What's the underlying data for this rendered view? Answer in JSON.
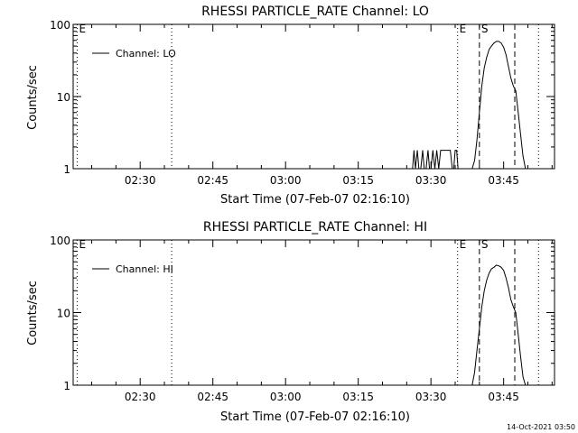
{
  "footer_timestamp": "14-Oct-2021 03:50",
  "chart_data": [
    {
      "type": "line",
      "title": "RHESSI PARTICLE_RATE Channel: LO",
      "xlabel": "Start Time (07-Feb-07 02:16:10)",
      "ylabel": "Counts/sec",
      "y_scale": "log",
      "ylim": [
        1,
        100
      ],
      "xlim_minutes": [
        16.17,
        115.5
      ],
      "x_tick_labels": [
        "02:30",
        "02:45",
        "03:00",
        "03:15",
        "03:30",
        "03:45"
      ],
      "x_tick_minutes": [
        30,
        45,
        60,
        75,
        90,
        105
      ],
      "y_tick_labels": [
        "1",
        "10",
        "100"
      ],
      "y_tick_values": [
        1,
        10,
        100
      ],
      "legend": {
        "position": "top-left",
        "entries": [
          "Channel: LO"
        ]
      },
      "markers": [
        {
          "label": "E",
          "x_minutes": 17.0,
          "style": "dotted"
        },
        {
          "label": "",
          "x_minutes": 36.5,
          "style": "dotted"
        },
        {
          "label": "E",
          "x_minutes": 95.5,
          "style": "dotted"
        },
        {
          "label": "S",
          "x_minutes": 100.0,
          "style": "dashed"
        },
        {
          "label": "",
          "x_minutes": 107.3,
          "style": "dashed"
        },
        {
          "label": "",
          "x_minutes": 112.2,
          "style": "dotted"
        }
      ],
      "series": [
        {
          "name": "Channel: LO",
          "x_minutes": [
            86.2,
            86.5,
            86.8,
            87.2,
            87.5,
            87.9,
            88.3,
            88.6,
            89.0,
            89.4,
            89.7,
            90.0,
            90.4,
            90.8,
            91.2,
            91.6,
            92.0,
            92.4,
            92.8,
            93.2,
            93.6,
            94.0,
            94.4,
            94.7,
            95.0,
            95.3,
            95.6,
            96.0,
            96.3,
            96.6,
            97.0,
            97.5,
            98.0,
            98.5,
            99.0,
            99.5,
            100.0,
            100.5,
            101.0,
            101.5,
            102.0,
            102.5,
            103.0,
            103.5,
            104.0,
            104.5,
            105.0,
            105.5,
            106.0,
            106.5,
            107.0,
            107.5,
            108.0,
            108.5,
            109.0,
            109.5
          ],
          "values": [
            1.0,
            1.8,
            1.0,
            1.8,
            1.0,
            1.0,
            1.8,
            1.0,
            1.0,
            1.8,
            1.0,
            1.0,
            1.8,
            1.0,
            1.8,
            1.0,
            1.8,
            1.8,
            1.8,
            1.8,
            1.8,
            1.8,
            1.0,
            1.0,
            1.8,
            1.8,
            1.0,
            1.0,
            1.0,
            1.0,
            1.0,
            1.0,
            1.0,
            1.0,
            1.3,
            2.5,
            6.0,
            14,
            25,
            35,
            45,
            50,
            55,
            58,
            58,
            55,
            48,
            38,
            26,
            18,
            14,
            12,
            6,
            3,
            1.5,
            1.0
          ]
        }
      ]
    },
    {
      "type": "line",
      "title": "RHESSI PARTICLE_RATE Channel: HI",
      "xlabel": "Start Time (07-Feb-07 02:16:10)",
      "ylabel": "Counts/sec",
      "y_scale": "log",
      "ylim": [
        1,
        100
      ],
      "xlim_minutes": [
        16.17,
        115.5
      ],
      "x_tick_labels": [
        "02:30",
        "02:45",
        "03:00",
        "03:15",
        "03:30",
        "03:45"
      ],
      "x_tick_minutes": [
        30,
        45,
        60,
        75,
        90,
        105
      ],
      "y_tick_labels": [
        "1",
        "10",
        "100"
      ],
      "y_tick_values": [
        1,
        10,
        100
      ],
      "legend": {
        "position": "top-left",
        "entries": [
          "Channel: HI"
        ]
      },
      "markers": [
        {
          "label": "E",
          "x_minutes": 17.0,
          "style": "dotted"
        },
        {
          "label": "",
          "x_minutes": 36.5,
          "style": "dotted"
        },
        {
          "label": "E",
          "x_minutes": 95.5,
          "style": "dotted"
        },
        {
          "label": "S",
          "x_minutes": 100.0,
          "style": "dashed"
        },
        {
          "label": "",
          "x_minutes": 107.3,
          "style": "dashed"
        },
        {
          "label": "",
          "x_minutes": 112.2,
          "style": "dotted"
        }
      ],
      "series": [
        {
          "name": "Channel: HI",
          "x_minutes": [
            98.5,
            99.0,
            99.5,
            100.0,
            100.5,
            101.0,
            101.5,
            102.0,
            102.5,
            103.0,
            103.5,
            104.0,
            104.5,
            105.0,
            105.5,
            106.0,
            106.5,
            107.0,
            107.5,
            108.0,
            108.5,
            109.0,
            109.5
          ],
          "values": [
            1.0,
            1.5,
            3.0,
            6.0,
            12,
            20,
            28,
            35,
            40,
            42,
            45,
            44,
            42,
            38,
            30,
            22,
            15,
            12,
            10,
            5,
            2.5,
            1.3,
            1.0
          ]
        }
      ]
    }
  ]
}
